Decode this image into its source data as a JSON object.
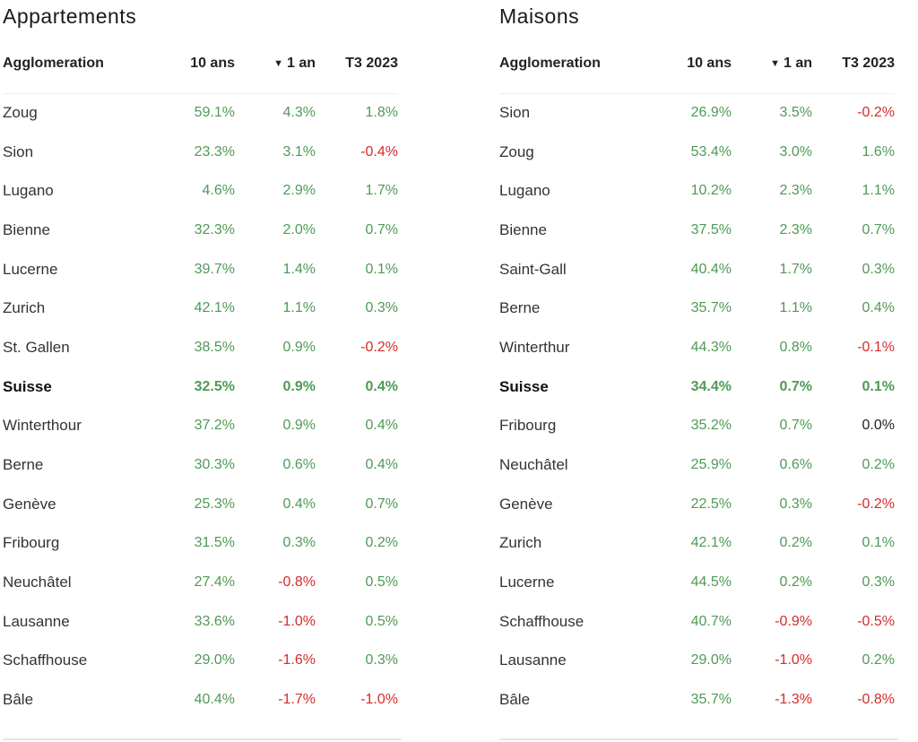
{
  "colors": {
    "positive": "#4f9a55",
    "negative": "#d42b2b",
    "neutral": "#1f1f1f"
  },
  "chart_data": [
    {
      "type": "table",
      "title": "Appartements",
      "columns": [
        "Agglomeration",
        "10 ans",
        "1 an",
        "T3 2023"
      ],
      "sorted_column": "1 an",
      "sort_direction": "descending",
      "rows": [
        {
          "name": "Zoug",
          "ten": "59.1%",
          "one": "4.3%",
          "q3": "1.8%",
          "bold": false
        },
        {
          "name": "Sion",
          "ten": "23.3%",
          "one": "3.1%",
          "q3": "-0.4%",
          "bold": false
        },
        {
          "name": "Lugano",
          "ten": "4.6%",
          "one": "2.9%",
          "q3": "1.7%",
          "bold": false
        },
        {
          "name": "Bienne",
          "ten": "32.3%",
          "one": "2.0%",
          "q3": "0.7%",
          "bold": false
        },
        {
          "name": "Lucerne",
          "ten": "39.7%",
          "one": "1.4%",
          "q3": "0.1%",
          "bold": false
        },
        {
          "name": "Zurich",
          "ten": "42.1%",
          "one": "1.1%",
          "q3": "0.3%",
          "bold": false
        },
        {
          "name": "St. Gallen",
          "ten": "38.5%",
          "one": "0.9%",
          "q3": "-0.2%",
          "bold": false
        },
        {
          "name": "Suisse",
          "ten": "32.5%",
          "one": "0.9%",
          "q3": "0.4%",
          "bold": true
        },
        {
          "name": "Winterthour",
          "ten": "37.2%",
          "one": "0.9%",
          "q3": "0.4%",
          "bold": false
        },
        {
          "name": "Berne",
          "ten": "30.3%",
          "one": "0.6%",
          "q3": "0.4%",
          "bold": false
        },
        {
          "name": "Genève",
          "ten": "25.3%",
          "one": "0.4%",
          "q3": "0.7%",
          "bold": false
        },
        {
          "name": "Fribourg",
          "ten": "31.5%",
          "one": "0.3%",
          "q3": "0.2%",
          "bold": false
        },
        {
          "name": "Neuchâtel",
          "ten": "27.4%",
          "one": "-0.8%",
          "q3": "0.5%",
          "bold": false
        },
        {
          "name": "Lausanne",
          "ten": "33.6%",
          "one": "-1.0%",
          "q3": "0.5%",
          "bold": false
        },
        {
          "name": "Schaffhouse",
          "ten": "29.0%",
          "one": "-1.6%",
          "q3": "0.3%",
          "bold": false
        },
        {
          "name": "Bâle",
          "ten": "40.4%",
          "one": "-1.7%",
          "q3": "-1.0%",
          "bold": false
        }
      ]
    },
    {
      "type": "table",
      "title": "Maisons",
      "columns": [
        "Agglomeration",
        "10 ans",
        "1 an",
        "T3 2023"
      ],
      "sorted_column": "1 an",
      "sort_direction": "descending",
      "rows": [
        {
          "name": "Sion",
          "ten": "26.9%",
          "one": "3.5%",
          "q3": "-0.2%",
          "bold": false
        },
        {
          "name": "Zoug",
          "ten": "53.4%",
          "one": "3.0%",
          "q3": "1.6%",
          "bold": false
        },
        {
          "name": "Lugano",
          "ten": "10.2%",
          "one": "2.3%",
          "q3": "1.1%",
          "bold": false
        },
        {
          "name": "Bienne",
          "ten": "37.5%",
          "one": "2.3%",
          "q3": "0.7%",
          "bold": false
        },
        {
          "name": "Saint-Gall",
          "ten": "40.4%",
          "one": "1.7%",
          "q3": "0.3%",
          "bold": false
        },
        {
          "name": "Berne",
          "ten": "35.7%",
          "one": "1.1%",
          "q3": "0.4%",
          "bold": false
        },
        {
          "name": "Winterthur",
          "ten": "44.3%",
          "one": "0.8%",
          "q3": "-0.1%",
          "bold": false
        },
        {
          "name": "Suisse",
          "ten": "34.4%",
          "one": "0.7%",
          "q3": "0.1%",
          "bold": true
        },
        {
          "name": "Fribourg",
          "ten": "35.2%",
          "one": "0.7%",
          "q3": "0.0%",
          "bold": false
        },
        {
          "name": "Neuchâtel",
          "ten": "25.9%",
          "one": "0.6%",
          "q3": "0.2%",
          "bold": false
        },
        {
          "name": "Genève",
          "ten": "22.5%",
          "one": "0.3%",
          "q3": "-0.2%",
          "bold": false
        },
        {
          "name": "Zurich",
          "ten": "42.1%",
          "one": "0.2%",
          "q3": "0.1%",
          "bold": false
        },
        {
          "name": "Lucerne",
          "ten": "44.5%",
          "one": "0.2%",
          "q3": "0.3%",
          "bold": false
        },
        {
          "name": "Schaffhouse",
          "ten": "40.7%",
          "one": "-0.9%",
          "q3": "-0.5%",
          "bold": false
        },
        {
          "name": "Lausanne",
          "ten": "29.0%",
          "one": "-1.0%",
          "q3": "0.2%",
          "bold": false
        },
        {
          "name": "Bâle",
          "ten": "35.7%",
          "one": "-1.3%",
          "q3": "-0.8%",
          "bold": false
        }
      ]
    }
  ]
}
